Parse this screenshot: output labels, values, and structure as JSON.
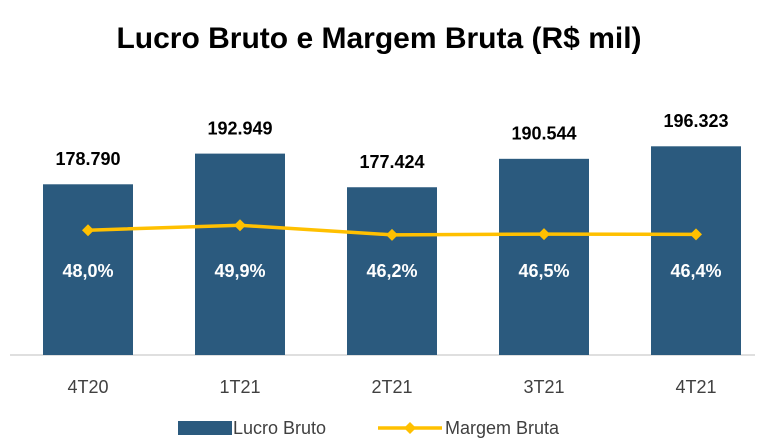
{
  "chart_data": {
    "type": "bar",
    "title": "Lucro Bruto e Margem Bruta (R$ mil)",
    "categories": [
      "4T20",
      "1T21",
      "2T21",
      "3T21",
      "4T21"
    ],
    "series": [
      {
        "name": "Lucro Bruto",
        "type": "bar",
        "color": "#2b5a7e",
        "values": [
          178790,
          192949,
          177424,
          190544,
          196323
        ],
        "value_labels": [
          "178.790",
          "192.949",
          "177.424",
          "190.544",
          "196.323"
        ]
      },
      {
        "name": "Margem Bruta",
        "type": "line",
        "axis": "y2",
        "color": "#ffc000",
        "values": [
          48.0,
          49.9,
          46.2,
          46.5,
          46.4
        ],
        "value_labels": [
          "48,0%",
          "49,9%",
          "46,2%",
          "46,5%",
          "46,4%"
        ]
      }
    ],
    "ylim": [
      100000,
      220000
    ],
    "y2lim": [
      0,
      100
    ],
    "legend": "bottom"
  }
}
